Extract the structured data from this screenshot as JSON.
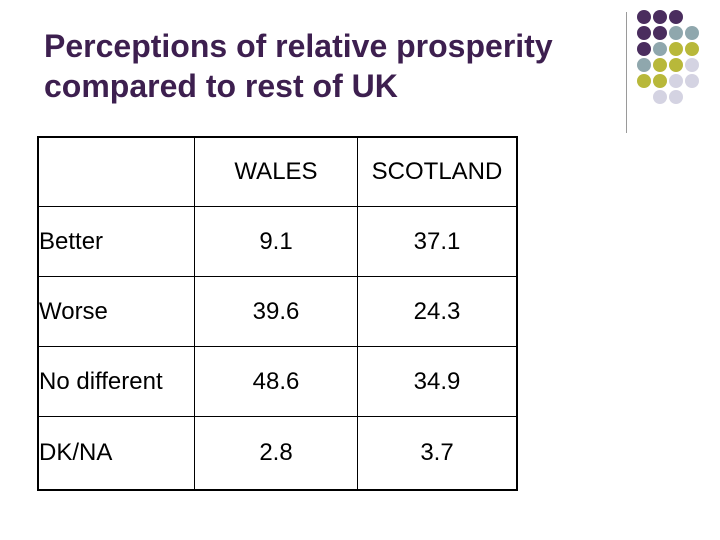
{
  "title": "Perceptions of relative prosperity compared to rest of UK",
  "table": {
    "headers": [
      "",
      "WALES",
      "SCOTLAND"
    ],
    "rows": [
      {
        "label": "Better",
        "wales": "9.1",
        "scotland": "37.1"
      },
      {
        "label": "Worse",
        "wales": "39.6",
        "scotland": "24.3"
      },
      {
        "label": "No different",
        "wales": "48.6",
        "scotland": "34.9"
      },
      {
        "label": "DK/NA",
        "wales": "2.8",
        "scotland": "3.7"
      }
    ]
  },
  "decoration": {
    "colors": {
      "purple": "#4a2d5e",
      "teal": "#8fa7ad",
      "olive": "#b8b83a",
      "lavender": "#d4d3e2"
    }
  }
}
